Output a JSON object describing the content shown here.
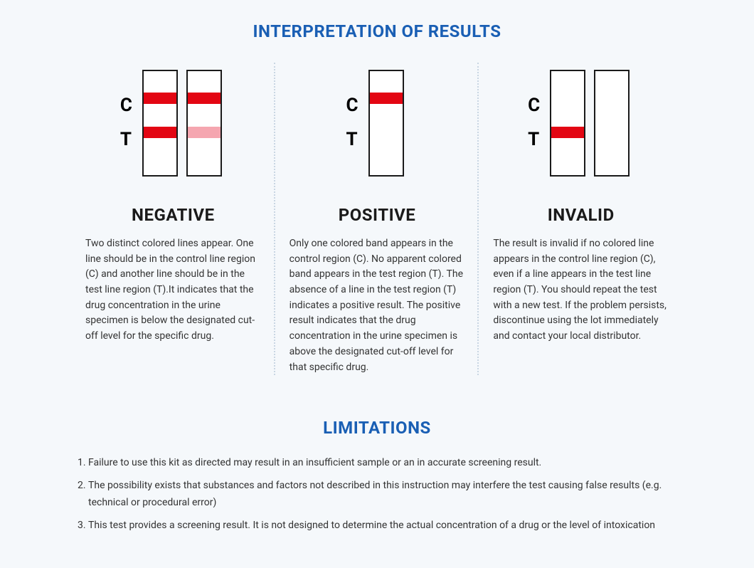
{
  "colors": {
    "page_bg": "#f5f8fb",
    "heading": "#1a5fb4",
    "body_text": "#333333",
    "strip_border": "#1a1a1a",
    "strip_bg": "#ffffff",
    "band_red": "#e30613",
    "band_pink": "#f5a6b0",
    "divider": "#c9d6e3"
  },
  "typography": {
    "title_fontsize_pt": 18,
    "result_heading_fontsize_pt": 18,
    "body_fontsize_pt": 10.5,
    "label_fontsize_pt": 20
  },
  "main_title": "INTERPRETATION OF RESULTS",
  "strip_labels": {
    "c": "C",
    "t": "T"
  },
  "results": {
    "negative": {
      "heading": "NEGATIVE",
      "text": "Two distinct colored lines appear. One line should be in the control line region (C) and another line should be in the test line region (T).It indicates that the drug concentration in the urine specimen is below the designated cut-off level for the specific drug.",
      "strips": [
        {
          "c_band": "#e30613",
          "t_band": "#e30613"
        },
        {
          "c_band": "#e30613",
          "t_band": "#f5a6b0"
        }
      ]
    },
    "positive": {
      "heading": "POSITIVE",
      "text": "Only one colored band appears in the control region (C). No apparent colored band appears in the test region (T). The absence of a line in the test region (T) indicates a positive result. The positive result indicates that the drug concentration in the urine specimen is above the designated cut-off level for that specific drug.",
      "strips": [
        {
          "c_band": "#e30613",
          "t_band": null
        }
      ]
    },
    "invalid": {
      "heading": "INVALID",
      "text": "The result is invalid if no colored line appears in the control line region (C), even if a line appears in the test line region (T). You should repeat the test with a new test. If the problem persists, discontinue using the lot immediately and contact your local distributor.",
      "strips": [
        {
          "c_band": null,
          "t_band": "#e30613"
        },
        {
          "c_band": null,
          "t_band": null
        }
      ]
    }
  },
  "limitations_title": "LIMITATIONS",
  "limitations": [
    "Failure to use this kit as directed may result in an insufficient sample or an in accurate screening result.",
    "The possibility exists that substances and factors not described in this instruction may interfere the test causing false results (e.g. technical or procedural error)",
    "This test provides a screening result. It is not designed to determine the actual concentration of a drug or the level of intoxication"
  ]
}
